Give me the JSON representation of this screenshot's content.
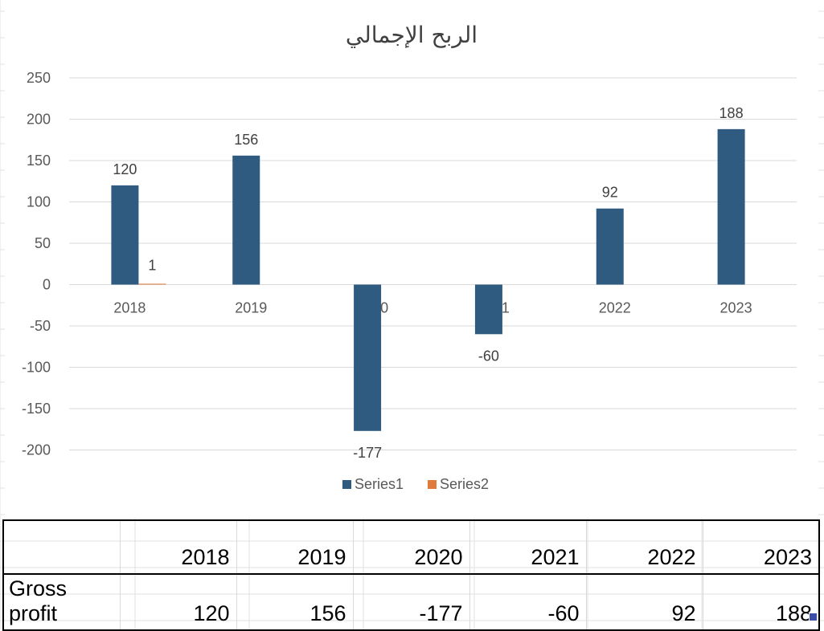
{
  "chart_data": {
    "type": "bar",
    "title": "الربح الإجمالي",
    "categories": [
      "2018",
      "2019",
      "2020",
      "2021",
      "2022",
      "2023"
    ],
    "series": [
      {
        "name": "Series1",
        "values": [
          120,
          156,
          -177,
          -60,
          92,
          188
        ],
        "color": "#2e5b7f"
      },
      {
        "name": "Series2",
        "values": [
          1,
          null,
          null,
          null,
          null,
          null
        ],
        "color": "#e07b3c"
      }
    ],
    "ylim": [
      -200,
      250
    ],
    "yticks": [
      "250",
      "200",
      "150",
      "100",
      "50",
      "0",
      "-50",
      "-100",
      "-150",
      "-200"
    ],
    "data_labels": [
      "120",
      "156",
      "-177",
      "-60",
      "92",
      "188"
    ],
    "series2_labels": [
      "1"
    ],
    "legend": "bottom",
    "grid": true
  },
  "table": {
    "headers": [
      "",
      "2018",
      "2019",
      "2020",
      "2021",
      "2022",
      "2023"
    ],
    "rows": [
      {
        "label": "Gross profit",
        "values": [
          "120",
          "156",
          "-177",
          "-60",
          "92",
          "188"
        ]
      }
    ]
  },
  "colors": {
    "gridline": "#d9d9d9",
    "axis_text": "#595959",
    "sheet_grid": "#e2e2e2"
  }
}
